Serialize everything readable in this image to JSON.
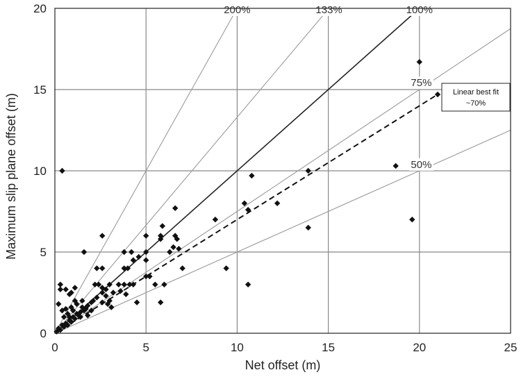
{
  "chart_data": {
    "type": "scatter",
    "xlabel": "Net offset (m)",
    "ylabel": "Maximum slip plane offset (m)",
    "xlim": [
      0,
      25
    ],
    "ylim": [
      0,
      20
    ],
    "xticks": [
      "0",
      "5",
      "10",
      "15",
      "20",
      "25"
    ],
    "yticks": [
      "0",
      "5",
      "10",
      "15",
      "20"
    ],
    "grid": true,
    "colors": {
      "points": "#111111",
      "grid": "#888888",
      "reference_lines": "#9a9a9a",
      "one_to_one_line": "#222222",
      "best_fit": "#111111"
    },
    "reference_lines": [
      {
        "label": "200%",
        "slope": 2.0
      },
      {
        "label": "133%",
        "slope": 1.33
      },
      {
        "label": "100%",
        "slope": 1.0
      },
      {
        "label": "75%",
        "slope": 0.75
      },
      {
        "label": "50%",
        "slope": 0.5
      }
    ],
    "best_fit": {
      "label_line1": "Linear best fit",
      "label_line2": "~70%",
      "slope": 0.7,
      "x_end": 21
    },
    "points": [
      [
        0.1,
        0.1
      ],
      [
        0.2,
        0.3
      ],
      [
        0.3,
        0.2
      ],
      [
        0.4,
        0.5
      ],
      [
        0.5,
        0.4
      ],
      [
        0.6,
        0.6
      ],
      [
        0.7,
        0.5
      ],
      [
        0.8,
        0.8
      ],
      [
        0.9,
        0.7
      ],
      [
        1.0,
        1.0
      ],
      [
        1.1,
        0.9
      ],
      [
        1.2,
        1.2
      ],
      [
        1.3,
        1.1
      ],
      [
        1.4,
        1.3
      ],
      [
        1.5,
        1.6
      ],
      [
        1.6,
        1.4
      ],
      [
        1.7,
        1.5
      ],
      [
        1.8,
        1.7
      ],
      [
        2.0,
        1.9
      ],
      [
        2.1,
        2.0
      ],
      [
        2.3,
        2.2
      ],
      [
        0.5,
        1.0
      ],
      [
        0.7,
        1.2
      ],
      [
        0.9,
        1.6
      ],
      [
        1.0,
        1.4
      ],
      [
        1.2,
        1.8
      ],
      [
        0.6,
        1.5
      ],
      [
        0.8,
        1.0
      ],
      [
        1.4,
        1.0
      ],
      [
        1.8,
        1.1
      ],
      [
        2.0,
        1.4
      ],
      [
        1.5,
        2.0
      ],
      [
        1.1,
        2.0
      ],
      [
        0.3,
        2.7
      ],
      [
        0.3,
        3.0
      ],
      [
        0.6,
        2.7
      ],
      [
        0.8,
        2.4
      ],
      [
        0.9,
        2.5
      ],
      [
        1.1,
        2.8
      ],
      [
        0.2,
        1.8
      ],
      [
        0.4,
        1.4
      ],
      [
        0.4,
        10.0
      ],
      [
        1.6,
        5.0
      ],
      [
        2.3,
        4.0
      ],
      [
        2.6,
        4.0
      ],
      [
        2.6,
        6.0
      ],
      [
        2.2,
        3.0
      ],
      [
        2.4,
        3.0
      ],
      [
        2.6,
        2.8
      ],
      [
        2.8,
        2.7
      ],
      [
        3.0,
        3.0
      ],
      [
        2.6,
        2.5
      ],
      [
        2.8,
        2.3
      ],
      [
        2.6,
        1.9
      ],
      [
        2.9,
        1.8
      ],
      [
        3.2,
        2.5
      ],
      [
        3.0,
        2.0
      ],
      [
        3.1,
        1.6
      ],
      [
        3.5,
        3.0
      ],
      [
        3.8,
        3.0
      ],
      [
        3.6,
        2.6
      ],
      [
        4.1,
        3.0
      ],
      [
        4.3,
        3.0
      ],
      [
        3.9,
        2.4
      ],
      [
        3.8,
        4.0
      ],
      [
        4.0,
        4.0
      ],
      [
        4.3,
        4.5
      ],
      [
        4.6,
        4.7
      ],
      [
        3.8,
        5.0
      ],
      [
        4.2,
        5.0
      ],
      [
        4.5,
        1.9
      ],
      [
        5.0,
        4.5
      ],
      [
        5.0,
        5.0
      ],
      [
        5.0,
        6.0
      ],
      [
        5.0,
        3.5
      ],
      [
        5.2,
        3.5
      ],
      [
        5.5,
        3.0
      ],
      [
        5.8,
        6.0
      ],
      [
        5.9,
        6.6
      ],
      [
        5.8,
        5.8
      ],
      [
        5.8,
        1.9
      ],
      [
        6.0,
        3.0
      ],
      [
        6.3,
        5.0
      ],
      [
        6.5,
        5.3
      ],
      [
        6.6,
        6.0
      ],
      [
        6.6,
        7.7
      ],
      [
        6.7,
        5.8
      ],
      [
        6.8,
        5.2
      ],
      [
        7.0,
        4.0
      ],
      [
        8.8,
        7.0
      ],
      [
        9.4,
        4.0
      ],
      [
        10.4,
        8.0
      ],
      [
        10.6,
        7.6
      ],
      [
        10.8,
        9.7
      ],
      [
        10.6,
        3.0
      ],
      [
        12.2,
        8.0
      ],
      [
        13.9,
        10.0
      ],
      [
        13.9,
        6.5
      ],
      [
        18.7,
        10.3
      ],
      [
        19.6,
        7.0
      ],
      [
        20.0,
        16.7
      ],
      [
        21.0,
        14.7
      ]
    ]
  }
}
